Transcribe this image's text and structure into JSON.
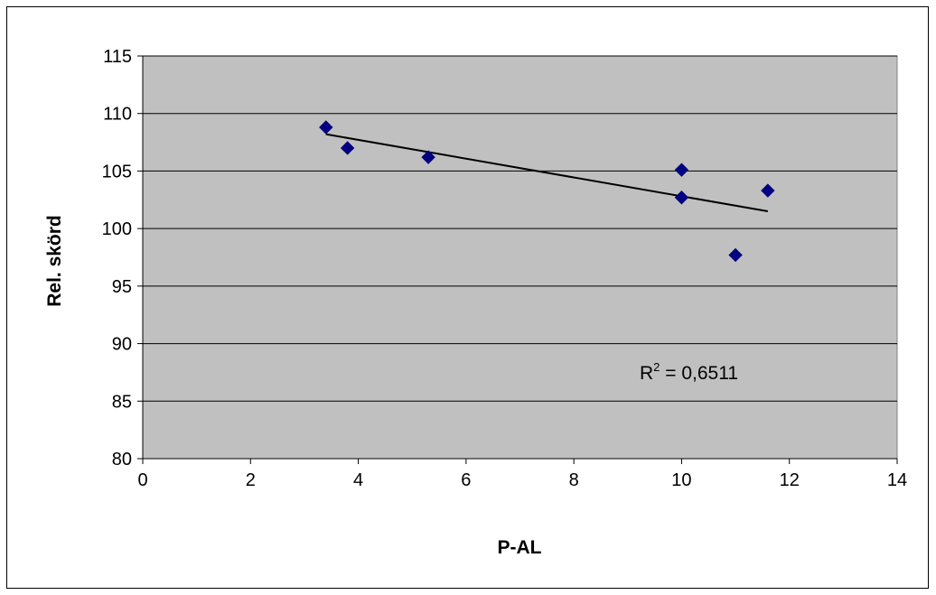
{
  "chart_data": {
    "type": "scatter",
    "title": "",
    "xlabel": "P-AL",
    "ylabel": "Rel. skörd",
    "xlim": [
      0,
      14
    ],
    "ylim": [
      80,
      115
    ],
    "x_ticks": [
      "0",
      "2",
      "4",
      "6",
      "8",
      "10",
      "12",
      "14"
    ],
    "y_ticks": [
      "80",
      "85",
      "90",
      "95",
      "100",
      "105",
      "110",
      "115"
    ],
    "grid": "horizontal",
    "plot_background": "#c0c0c0",
    "marker_color": "#000080",
    "marker_shape": "diamond",
    "points": [
      {
        "x": 3.4,
        "y": 108.8
      },
      {
        "x": 3.8,
        "y": 107.0
      },
      {
        "x": 5.3,
        "y": 106.2
      },
      {
        "x": 10.0,
        "y": 105.1
      },
      {
        "x": 10.0,
        "y": 102.7
      },
      {
        "x": 11.0,
        "y": 97.7
      },
      {
        "x": 11.6,
        "y": 103.3
      }
    ],
    "trendline": {
      "type": "linear",
      "x_start": 3.4,
      "y_start": 108.2,
      "x_end": 11.6,
      "y_end": 101.5
    },
    "annotation": {
      "prefix": "R",
      "superscript": "2",
      "suffix": " = 0,6511"
    }
  }
}
